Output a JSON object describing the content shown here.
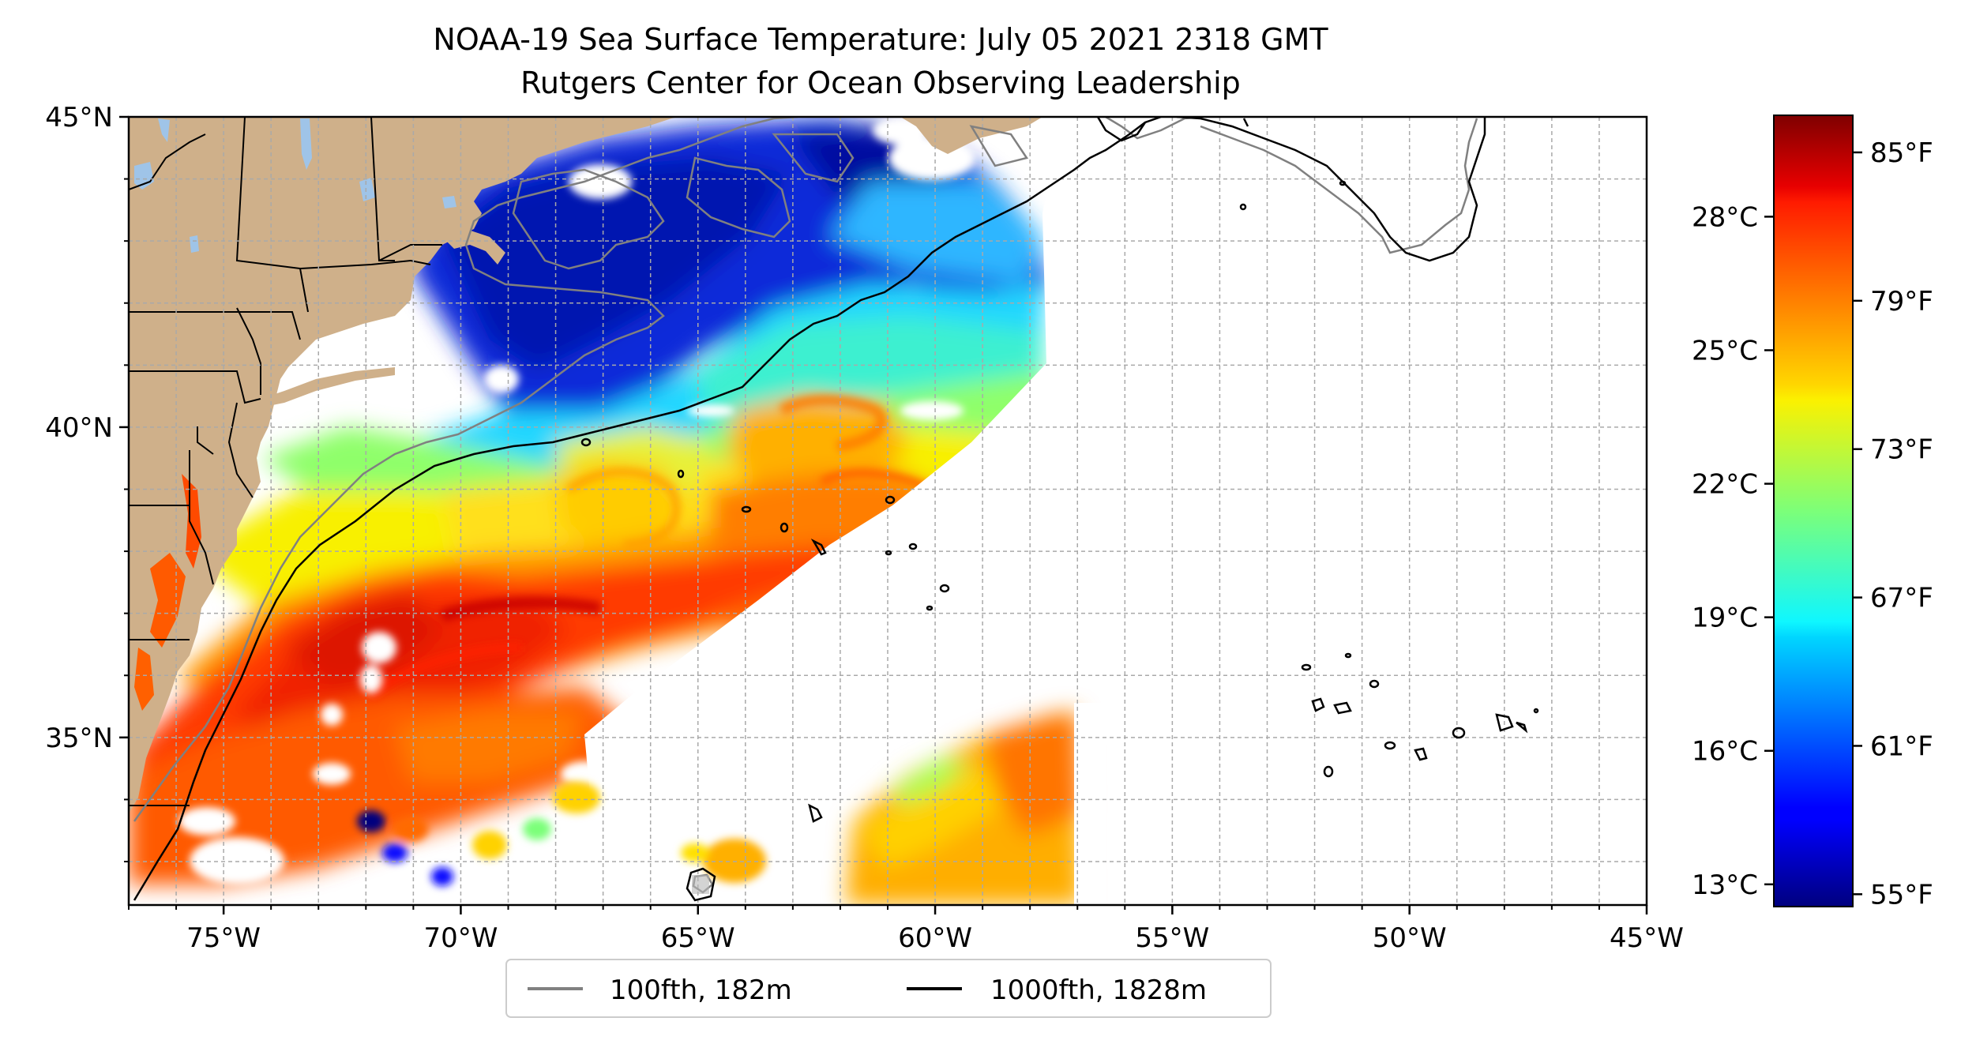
{
  "title": {
    "line1": "NOAA-19 Sea Surface Temperature: July 05 2021 2318 GMT",
    "line2": "Rutgers Center for Ocean Observing Leadership"
  },
  "map": {
    "lon_range": [
      -77,
      -45
    ],
    "lat_range": [
      32.3,
      45
    ],
    "x_ticks": [
      {
        "value": -75,
        "label": "75°W"
      },
      {
        "value": -70,
        "label": "70°W"
      },
      {
        "value": -65,
        "label": "65°W"
      },
      {
        "value": -60,
        "label": "60°W"
      },
      {
        "value": -55,
        "label": "55°W"
      },
      {
        "value": -50,
        "label": "50°W"
      },
      {
        "value": -45,
        "label": "45°W"
      }
    ],
    "y_ticks": [
      {
        "value": 45,
        "label": "45°N"
      },
      {
        "value": 40,
        "label": "40°N"
      },
      {
        "value": 35,
        "label": "35°N"
      }
    ],
    "grid": true,
    "grid_style": "dashed",
    "land_color": "#cfb08a",
    "water_color": "#ffffff",
    "lake_color": "#9fc4e8"
  },
  "legend": {
    "placement": "bottom-center",
    "entries": [
      {
        "label": "100fth, 182m",
        "color": "#808080"
      },
      {
        "label": "1000fth, 1828m",
        "color": "#000000"
      }
    ]
  },
  "colorbar": {
    "colormap": "jet",
    "celsius_ticks": [
      {
        "value": 13,
        "label": "13°C"
      },
      {
        "value": 16,
        "label": "16°C"
      },
      {
        "value": 19,
        "label": "19°C"
      },
      {
        "value": 22,
        "label": "22°C"
      },
      {
        "value": 25,
        "label": "25°C"
      },
      {
        "value": 28,
        "label": "28°C"
      }
    ],
    "fahrenheit_ticks": [
      {
        "value": 55,
        "label": "55°F"
      },
      {
        "value": 61,
        "label": "61°F"
      },
      {
        "value": 67,
        "label": "67°F"
      },
      {
        "value": 73,
        "label": "73°F"
      },
      {
        "value": 79,
        "label": "79°F"
      },
      {
        "value": 85,
        "label": "85°F"
      }
    ],
    "range_f": [
      54.5,
      86.5
    ]
  }
}
